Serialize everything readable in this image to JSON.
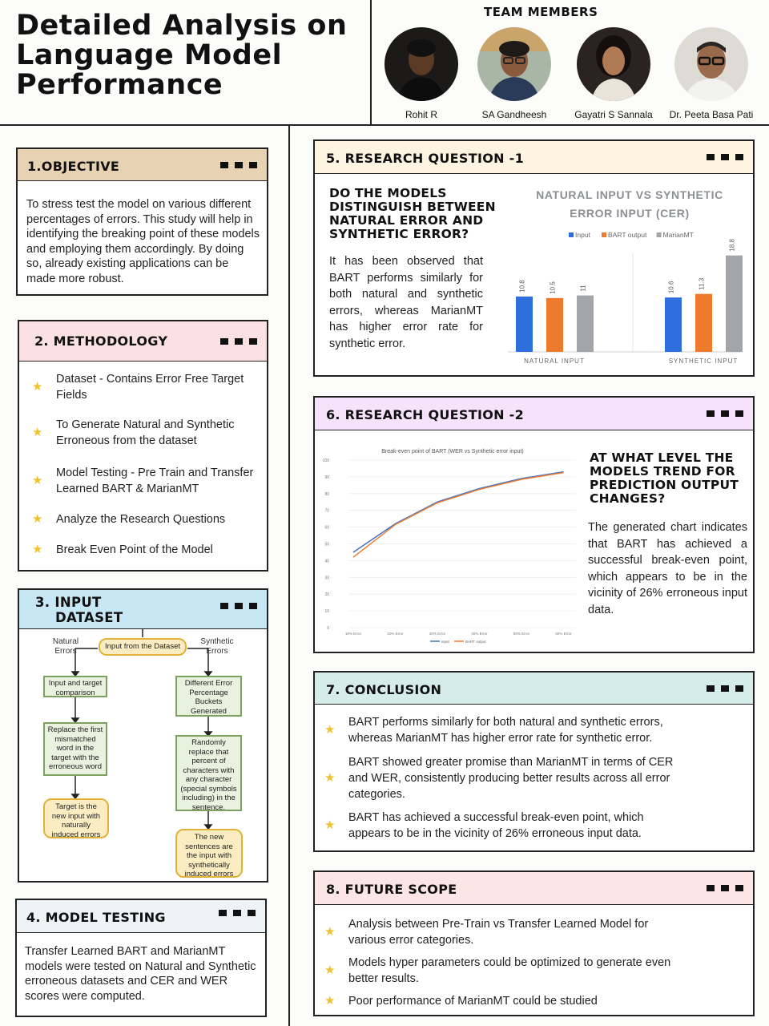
{
  "title": "Detailed Analysis on Language Model Performance",
  "team": {
    "heading": "TEAM MEMBERS",
    "members": [
      {
        "name": "Rohit R"
      },
      {
        "name": "SA Gandheesh"
      },
      {
        "name": "Gayatri S Sannala"
      },
      {
        "name": "Dr. Peeta Basa Pati"
      }
    ]
  },
  "objective": {
    "heading": "1.OBJECTIVE",
    "text": "To stress test the model on various different percentages of errors. This study will help in identifying the breaking point of these models and employing them accordingly. By doing so, already existing applications can be made more robust."
  },
  "methodology": {
    "heading": "2. METHODOLOGY",
    "items": [
      "Dataset - Contains Error Free Target Fields",
      "To Generate Natural and Synthetic Erroneous from the dataset",
      "Model Testing - Pre Train and Transfer Learned BART & MarianMT",
      "Analyze the Research Questions",
      "Break Even Point of the Model"
    ]
  },
  "input_dataset": {
    "heading_line1": "3. INPUT",
    "heading_line2": "DATASET",
    "flow": {
      "root": "Input from the Dataset",
      "left_label": "Natural Errors",
      "right_label": "Synthetic Errors",
      "left_steps": [
        "Input and target comparison",
        "Replace the first mismatched word in the target with the erroneous word",
        "Target is the new input with naturally induced errors"
      ],
      "right_steps": [
        "Different Error Percentage Buckets Generated",
        "Randomly replace that percent of characters with any character (special symbols including) in the sentence.",
        "The new sentences are the input with synthetically induced errors"
      ]
    }
  },
  "model_testing": {
    "heading": "4. MODEL TESTING",
    "text": "Transfer Learned BART and MarianMT models were tested on Natural and Synthetic erroneous datasets and CER and WER scores were computed."
  },
  "rq1": {
    "heading": "5. RESEARCH QUESTION -1",
    "question": "DO THE MODELS DISTINGUISH BETWEEN NATURAL ERROR AND SYNTHETIC ERROR?",
    "text": "It has been observed that BART performs similarly for both natural and synthetic errors, whereas MarianMT has higher error rate for synthetic error."
  },
  "rq2": {
    "heading": "6. RESEARCH QUESTION -2",
    "question": "AT WHAT LEVEL THE MODELS TREND FOR PREDICTION OUTPUT CHANGES?",
    "text": "The generated chart indicates that BART has achieved a successful break-even point, which appears to be in the vicinity of 26% erroneous input data."
  },
  "conclusion": {
    "heading": "7. CONCLUSION",
    "items": [
      "BART performs similarly for both natural and synthetic errors, whereas MarianMT has higher error rate for synthetic error.",
      "BART showed greater promise than MarianMT in terms of CER and WER, consistently producing better results across all error categories.",
      "BART has achieved a successful break-even point, which appears to be in the vicinity of 26% erroneous input data."
    ]
  },
  "future_scope": {
    "heading": "8. FUTURE SCOPE",
    "items": [
      "Analysis between Pre-Train vs Transfer Learned Model for various error categories.",
      "Models hyper parameters could be optimized to generate even better results.",
      "Poor performance of MarianMT could be studied"
    ]
  },
  "colors": {
    "objective": "#e7d2b4",
    "methodology": "#fbe1e1",
    "input_dataset": "#c8e7f5",
    "model_testing": "#eef3f7",
    "rq1": "#fdf5e1",
    "rq2": "#f6e3fb",
    "conclusion": "#d6ecea",
    "future_scope": "#fbe5e5",
    "star": "#f2c12e"
  },
  "chart_data": [
    {
      "type": "bar",
      "title": "NATURAL INPUT VS SYNTHETIC ERROR INPUT (CER)",
      "categories": [
        "NATURAL INPUT",
        "SYNTHETIC INPUT"
      ],
      "series": [
        {
          "name": "Input",
          "values": [
            10.8,
            10.6
          ],
          "color": "#2f6fdd"
        },
        {
          "name": "BART output",
          "values": [
            10.5,
            11.3
          ],
          "color": "#ee7a2c"
        },
        {
          "name": "MarianMT",
          "values": [
            11,
            18.8
          ],
          "color": "#a3a5a8"
        }
      ],
      "legend": "top",
      "grid": false
    },
    {
      "type": "line",
      "title": "Break-even point of BART (WER vs Synthetic error input)",
      "categories": [
        "10% Error",
        "20% Error",
        "30% Error",
        "40% Error",
        "50% Error",
        "60% Error"
      ],
      "y_ticks": [
        0,
        10,
        20,
        30,
        40,
        50,
        60,
        70,
        80,
        90,
        100
      ],
      "ylim": [
        0,
        100
      ],
      "series": [
        {
          "name": "input",
          "values": [
            45,
            62,
            75,
            83,
            89,
            93
          ],
          "color": "#4472c4"
        },
        {
          "name": "BART output",
          "values": [
            42,
            61.5,
            74.5,
            82.5,
            88.5,
            92.5
          ],
          "color": "#ed7d31"
        }
      ],
      "legend": "bottom",
      "grid": true
    }
  ]
}
